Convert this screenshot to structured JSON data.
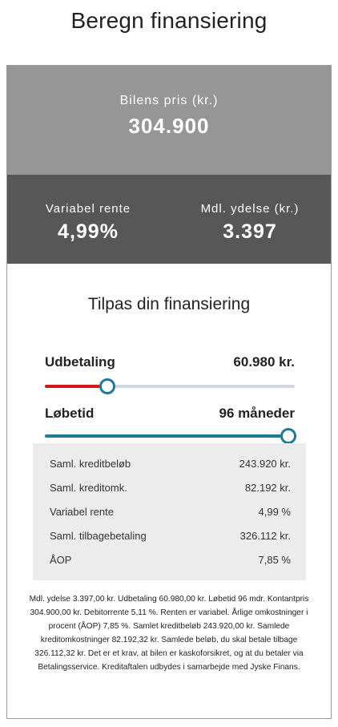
{
  "page": {
    "title": "Beregn finansiering"
  },
  "price": {
    "label": "Bilens pris (kr.)",
    "value": "304.900"
  },
  "rates": {
    "variable_label": "Variabel rente",
    "variable_value": "4,99%",
    "monthly_label": "Mdl. ydelse (kr.)",
    "monthly_value": "3.397"
  },
  "customize": {
    "title": "Tilpas din finansiering"
  },
  "sliders": [
    {
      "name": "Udbetaling",
      "value": "60.980 kr.",
      "level": 0.25,
      "fill_color": "#d0171d",
      "thumb_color": "#1d7a98"
    },
    {
      "name": "Løbetid",
      "value": "96 måneder",
      "level": 1.0,
      "fill_color": "#1d7a98",
      "thumb_color": "#1d7a98"
    }
  ],
  "summary": [
    {
      "label": "Saml. kreditbeløb",
      "value": "243.920 kr."
    },
    {
      "label": "Saml. kreditomk.",
      "value": "82.192 kr."
    },
    {
      "label": "Variabel rente",
      "value": "4,99 %"
    },
    {
      "label": "Saml. tilbagebetaling",
      "value": "326.112 kr."
    },
    {
      "label": "ÅOP",
      "value": "7,85 %"
    }
  ],
  "disclaimer": "Mdl. ydelse 3.397,00 kr. Udbetaling 60.980,00 kr. Løbetid 96 mdr. Kontantpris 304.900,00 kr. Debitorrente 5,11 %. Renten er variabel. Årlige omkostninger i procent (ÅOP) 7,85 %. Samlet kreditbeløb 243.920,00 kr. Samlede kreditomkostninger 82.192,32 kr. Samlede beløb, du skal betale tilbage 326.112,32 kr. Det er et krav, at bilen er kaskoforsikret, og at du betaler via Betalingsservice. Kreditaftalen udbydes i samarbejde med Jyske Finans."
}
